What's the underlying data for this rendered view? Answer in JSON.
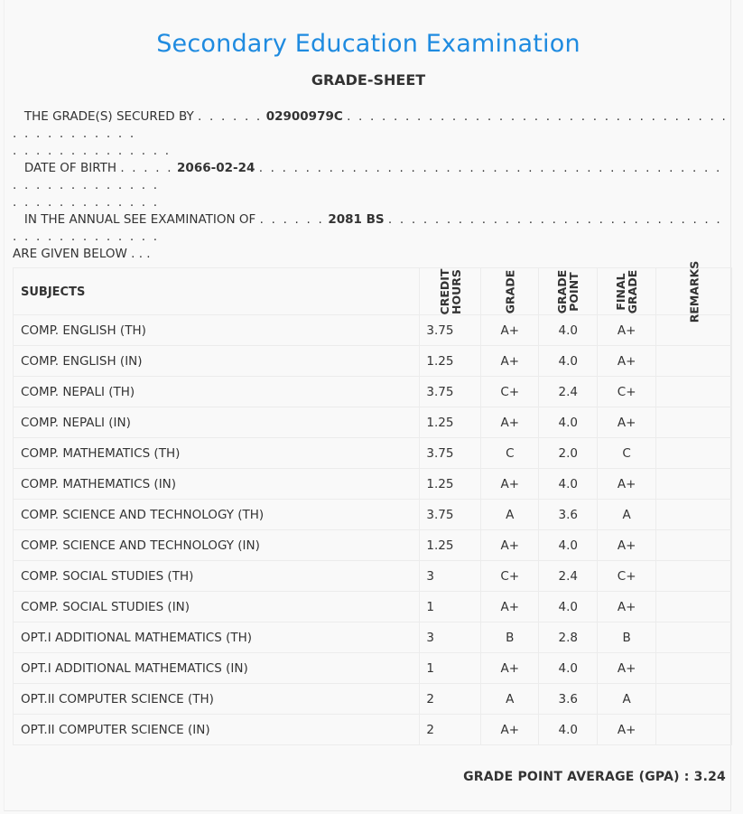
{
  "header": {
    "title": "Secondary Education Examination",
    "subtitle": "GRADE-SHEET"
  },
  "info": {
    "secured_by_label": "THE GRADE(S) SECURED BY",
    "symbol_number": "02900979C",
    "dob_label": "DATE OF BIRTH",
    "dob": "2066-02-24",
    "exam_label": "IN THE ANNUAL SEE EXAMINATION OF",
    "exam_year": "2081 BS",
    "exam_suffix": "ARE GIVEN BELOW . . ."
  },
  "table": {
    "headers": {
      "subjects": "SUBJECTS",
      "credit_hours": "CREDIT\nHOURS",
      "grade": "GRADE",
      "grade_point": "GRADE\nPOINT",
      "final_grade": "FINAL\nGRADE",
      "remarks": "REMARKS"
    },
    "rows": [
      {
        "subject": "COMP. ENGLISH (TH)",
        "credit": "3.75",
        "grade": "A+",
        "point": "4.0",
        "final": "A+",
        "remarks": ""
      },
      {
        "subject": "COMP. ENGLISH (IN)",
        "credit": "1.25",
        "grade": "A+",
        "point": "4.0",
        "final": "A+",
        "remarks": ""
      },
      {
        "subject": "COMP. NEPALI (TH)",
        "credit": "3.75",
        "grade": "C+",
        "point": "2.4",
        "final": "C+",
        "remarks": ""
      },
      {
        "subject": "COMP. NEPALI (IN)",
        "credit": "1.25",
        "grade": "A+",
        "point": "4.0",
        "final": "A+",
        "remarks": ""
      },
      {
        "subject": "COMP. MATHEMATICS (TH)",
        "credit": "3.75",
        "grade": "C",
        "point": "2.0",
        "final": "C",
        "remarks": ""
      },
      {
        "subject": "COMP. MATHEMATICS (IN)",
        "credit": "1.25",
        "grade": "A+",
        "point": "4.0",
        "final": "A+",
        "remarks": ""
      },
      {
        "subject": "COMP. SCIENCE AND TECHNOLOGY (TH)",
        "credit": "3.75",
        "grade": "A",
        "point": "3.6",
        "final": "A",
        "remarks": ""
      },
      {
        "subject": "COMP. SCIENCE AND TECHNOLOGY (IN)",
        "credit": "1.25",
        "grade": "A+",
        "point": "4.0",
        "final": "A+",
        "remarks": ""
      },
      {
        "subject": "COMP. SOCIAL STUDIES (TH)",
        "credit": "3",
        "grade": "C+",
        "point": "2.4",
        "final": "C+",
        "remarks": ""
      },
      {
        "subject": "COMP. SOCIAL STUDIES (IN)",
        "credit": "1",
        "grade": "A+",
        "point": "4.0",
        "final": "A+",
        "remarks": ""
      },
      {
        "subject": "OPT.I ADDITIONAL MATHEMATICS (TH)",
        "credit": "3",
        "grade": "B",
        "point": "2.8",
        "final": "B",
        "remarks": ""
      },
      {
        "subject": "OPT.I ADDITIONAL MATHEMATICS (IN)",
        "credit": "1",
        "grade": "A+",
        "point": "4.0",
        "final": "A+",
        "remarks": ""
      },
      {
        "subject": "OPT.II COMPUTER SCIENCE (TH)",
        "credit": "2",
        "grade": "A",
        "point": "3.6",
        "final": "A",
        "remarks": ""
      },
      {
        "subject": "OPT.II COMPUTER SCIENCE (IN)",
        "credit": "2",
        "grade": "A+",
        "point": "4.0",
        "final": "A+",
        "remarks": ""
      }
    ]
  },
  "footer": {
    "gpa_label": "GRADE POINT AVERAGE (GPA) :",
    "gpa_value": "3.24"
  },
  "colors": {
    "title": "#1f8be0",
    "background": "#f9f9f9",
    "border": "#ececec",
    "text": "#333333"
  }
}
